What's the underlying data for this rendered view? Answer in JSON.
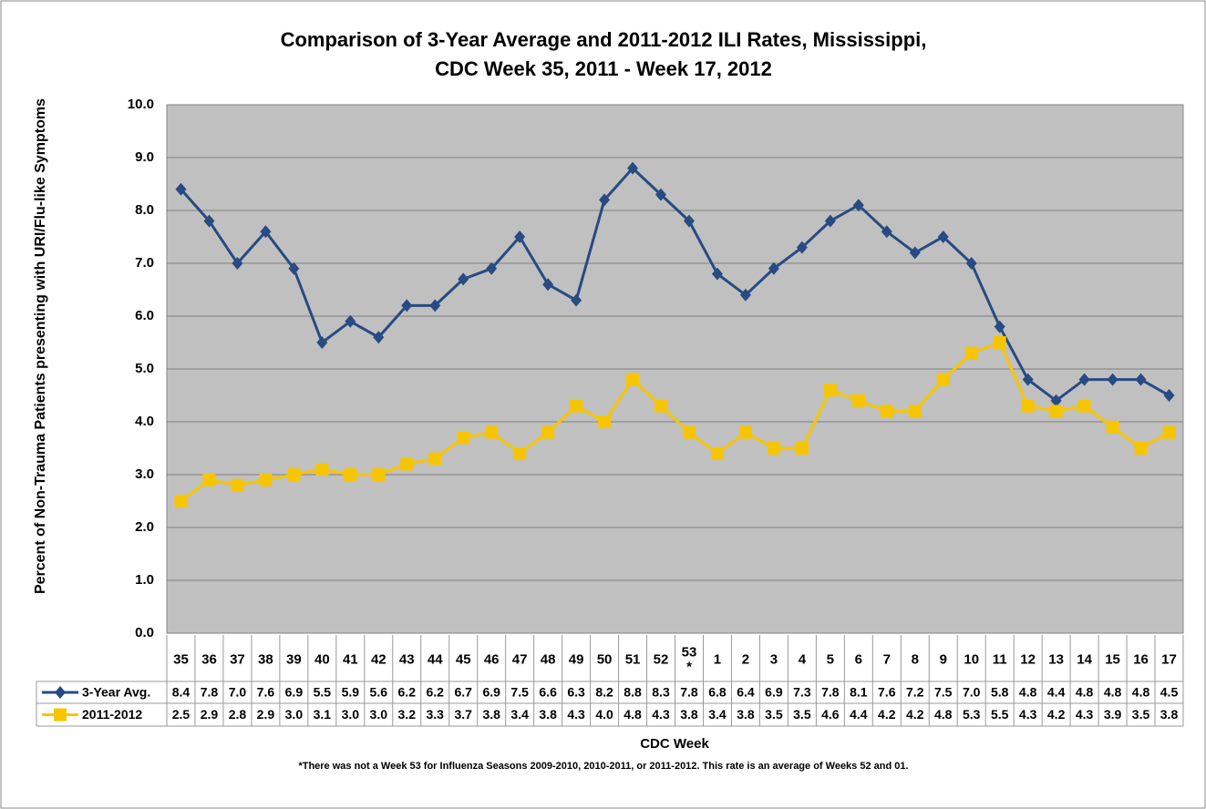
{
  "chart_data": {
    "type": "line",
    "title": "Comparison of 3-Year Average and 2011-2012 ILI Rates, Mississippi,",
    "subtitle": "CDC Week 35, 2011 - Week 17, 2012",
    "y_label": "Percent of Non-Trauma Patients presenting with URI/Flu-like Symptoms",
    "x_label": "CDC Week",
    "footnote": "*There was not a Week 53 for Influenza Seasons 2009-2010, 2010-2011, or 2011-2012. This rate is an average of Weeks 52 and 01.",
    "categories": [
      "35",
      "36",
      "37",
      "38",
      "39",
      "40",
      "41",
      "42",
      "43",
      "44",
      "45",
      "46",
      "47",
      "48",
      "49",
      "50",
      "51",
      "52",
      "53\n*",
      "1",
      "2",
      "3",
      "4",
      "5",
      "6",
      "7",
      "8",
      "9",
      "10",
      "11",
      "12",
      "13",
      "14",
      "15",
      "16",
      "17"
    ],
    "series": [
      {
        "name": "3-Year Avg.",
        "color": "#274b82",
        "marker": "diamond",
        "values": [
          8.4,
          7.8,
          7.0,
          7.6,
          6.9,
          5.5,
          5.9,
          5.6,
          6.2,
          6.2,
          6.7,
          6.9,
          7.5,
          6.6,
          6.3,
          8.2,
          8.8,
          8.3,
          7.8,
          6.8,
          6.4,
          6.9,
          7.3,
          7.8,
          8.1,
          7.6,
          7.2,
          7.5,
          7.0,
          5.8,
          4.8,
          4.4,
          4.8,
          4.8,
          4.8,
          4.5
        ],
        "value_labels": [
          "8.4",
          "7.8",
          "7.0",
          "7.6",
          "6.9",
          "5.5",
          "5.9",
          "5.6",
          "6.2",
          "6.2",
          "6.7",
          "6.9",
          "7.5",
          "6.6",
          "6.3",
          "8.2",
          "8.8",
          "8.3",
          "7.8",
          "6.8",
          "6.4",
          "6.9",
          "7.3",
          "7.8",
          "8.1",
          "7.6",
          "7.2",
          "7.5",
          "7.0",
          "5.8",
          "4.8",
          "4.4",
          "4.8",
          "4.8",
          "4.8",
          "4.5"
        ]
      },
      {
        "name": "2011-2012",
        "color": "#f7c600",
        "marker": "square",
        "values": [
          2.5,
          2.9,
          2.8,
          2.9,
          3.0,
          3.1,
          3.0,
          3.0,
          3.2,
          3.3,
          3.7,
          3.8,
          3.4,
          3.8,
          4.3,
          4.0,
          4.8,
          4.3,
          3.8,
          3.4,
          3.8,
          3.5,
          3.5,
          4.6,
          4.4,
          4.2,
          4.2,
          4.8,
          5.3,
          5.5,
          4.3,
          4.2,
          4.3,
          3.9,
          3.5,
          3.8
        ],
        "value_labels": [
          "2.5",
          "2.9",
          "2.8",
          "2.9",
          "3.0",
          "3.1",
          "3.0",
          "3.0",
          "3.2",
          "3.3",
          "3.7",
          "3.8",
          "3.4",
          "3.8",
          "4.3",
          "4.0",
          "4.8",
          "4.3",
          "3.8",
          "3.4",
          "3.8",
          "3.5",
          "3.5",
          "4.6",
          "4.4",
          "4.2",
          "4.2",
          "4.8",
          "5.3",
          "5.5",
          "4.3",
          "4.2",
          "4.3",
          "3.9",
          "3.5",
          "3.8"
        ]
      }
    ],
    "ylim": [
      0,
      10
    ],
    "yticks": [
      {
        "value": 0,
        "label": "0.0"
      },
      {
        "value": 1,
        "label": "1.0"
      },
      {
        "value": 2,
        "label": "2.0"
      },
      {
        "value": 3,
        "label": "3.0"
      },
      {
        "value": 4,
        "label": "4.0"
      },
      {
        "value": 5,
        "label": "5.0"
      },
      {
        "value": 6,
        "label": "6.0"
      },
      {
        "value": 7,
        "label": "7.0"
      },
      {
        "value": 8,
        "label": "8.0"
      },
      {
        "value": 9,
        "label": "9.0"
      },
      {
        "value": 10,
        "label": "10.0"
      }
    ],
    "grid": true,
    "plot_background": "#c0c0c0"
  }
}
